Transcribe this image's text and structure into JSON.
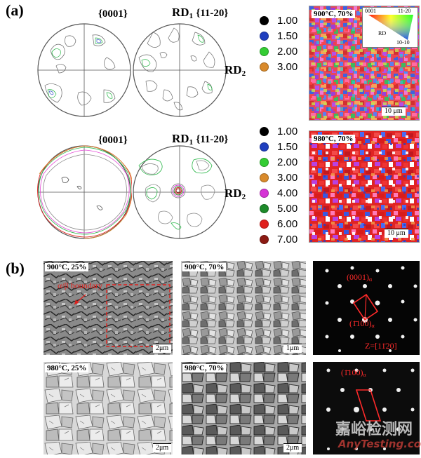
{
  "panel_a": {
    "label": "(a)",
    "row1": {
      "pf_left_title": "{0001}",
      "pf_right_title_rd": "RD",
      "pf_right_title_sub": "1",
      "pf_right_title_plane": "{11-20}",
      "rd2_label": "RD",
      "rd2_sub": "2",
      "legend": [
        {
          "value": "1.00",
          "color": "#000000"
        },
        {
          "value": "1.50",
          "color": "#1f3fbf"
        },
        {
          "value": "2.00",
          "color": "#33cc33"
        },
        {
          "value": "3.00",
          "color": "#d98a2b"
        }
      ],
      "map_label": "900°C, 70%",
      "scalebar": "10 μm",
      "ipf_key": {
        "top_left": "0001",
        "top_right": "11-20",
        "bottom": "10-10",
        "rd": "RD"
      }
    },
    "row2": {
      "pf_left_title": "{0001}",
      "pf_right_title_rd": "RD",
      "pf_right_title_sub": "1",
      "pf_right_title_plane": "{11-20}",
      "rd2_label": "RD",
      "rd2_sub": "2",
      "legend": [
        {
          "value": "1.00",
          "color": "#000000"
        },
        {
          "value": "1.50",
          "color": "#1f3fbf"
        },
        {
          "value": "2.00",
          "color": "#33cc33"
        },
        {
          "value": "3.00",
          "color": "#d98a2b"
        },
        {
          "value": "4.00",
          "color": "#d633d6"
        },
        {
          "value": "5.00",
          "color": "#1d8a2a"
        },
        {
          "value": "6.00",
          "color": "#e0201c"
        },
        {
          "value": "7.00",
          "color": "#8b1a12"
        }
      ],
      "map_label": "980°C, 70%",
      "scalebar": "10 μm"
    }
  },
  "panel_b": {
    "label": "(b)",
    "tem": [
      {
        "label": "900°C, 25%",
        "scalebar": "2μm",
        "annotation": "α/β boundary"
      },
      {
        "label": "900°C, 70%",
        "scalebar": "1μm"
      },
      {
        "label": "980°C, 25%",
        "scalebar": "2μm"
      },
      {
        "label": "980°C, 70%",
        "scalebar": "2μm"
      }
    ],
    "saed_top": {
      "spot1": "(0001)",
      "spot1_sub": "α",
      "spot2": "(1̄100)",
      "spot2_sub": "α",
      "zone": "Z=[11̄20]"
    },
    "saed_bottom": {
      "spot1": "(1̄100)",
      "spot1_sub": "α"
    }
  },
  "watermark": {
    "cn": "嘉峪检测网",
    "en": "AnyTesting.com"
  }
}
